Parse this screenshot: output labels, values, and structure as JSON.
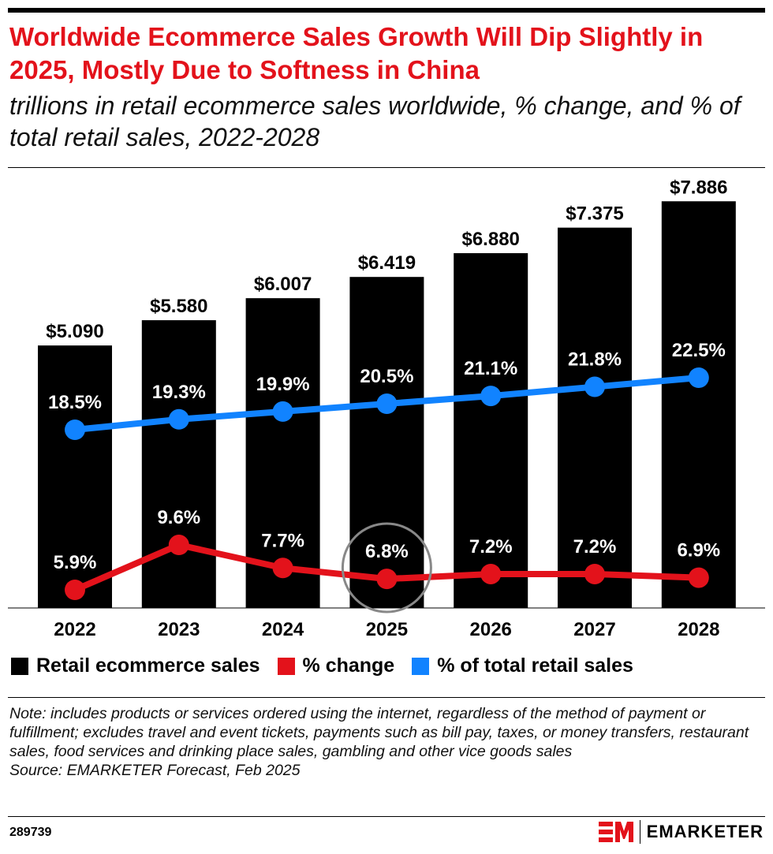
{
  "title": "Worldwide Ecommerce Sales Growth Will Dip Slightly in 2025, Mostly Due to Softness in China",
  "subtitle": "trillions in retail ecommerce sales worldwide, % change, and % of total retail sales, 2022-2028",
  "chart_data": {
    "type": "bar",
    "categories": [
      "2022",
      "2023",
      "2024",
      "2025",
      "2026",
      "2027",
      "2028"
    ],
    "series": [
      {
        "name": "Retail ecommerce sales",
        "type": "bar",
        "color": "#000000",
        "values": [
          5.09,
          5.58,
          6.007,
          6.419,
          6.88,
          7.375,
          7.886
        ],
        "labels": [
          "$5.090",
          "$5.580",
          "$6.007",
          "$6.419",
          "$6.880",
          "$7.375",
          "$7.886"
        ]
      },
      {
        "name": "% change",
        "type": "line",
        "color": "#e3121b",
        "values": [
          5.9,
          9.6,
          7.7,
          6.8,
          7.2,
          7.2,
          6.9
        ],
        "labels": [
          "5.9%",
          "9.6%",
          "7.7%",
          "6.8%",
          "7.2%",
          "7.2%",
          "6.9%"
        ]
      },
      {
        "name": "% of total retail sales",
        "type": "line",
        "color": "#1183ff",
        "values": [
          18.5,
          19.3,
          19.9,
          20.5,
          21.1,
          21.8,
          22.5
        ],
        "labels": [
          "18.5%",
          "19.3%",
          "19.9%",
          "20.5%",
          "21.1%",
          "21.8%",
          "22.5%"
        ]
      }
    ],
    "highlight": {
      "category": "2025",
      "series": "% change"
    },
    "grid": false,
    "legend": "bottom"
  },
  "legend": [
    "Retail ecommerce sales",
    "% change",
    "% of total retail sales"
  ],
  "note": "Note: includes products or services ordered using the internet, regardless of the method of payment or fulfillment; excludes travel and event tickets, payments such as bill pay, taxes, or money transfers, restaurant sales, food services and drinking place sales, gambling and other vice goods sales",
  "source": "Source: EMARKETER Forecast, Feb 2025",
  "chart_id": "289739",
  "brand": "EMARKETER"
}
